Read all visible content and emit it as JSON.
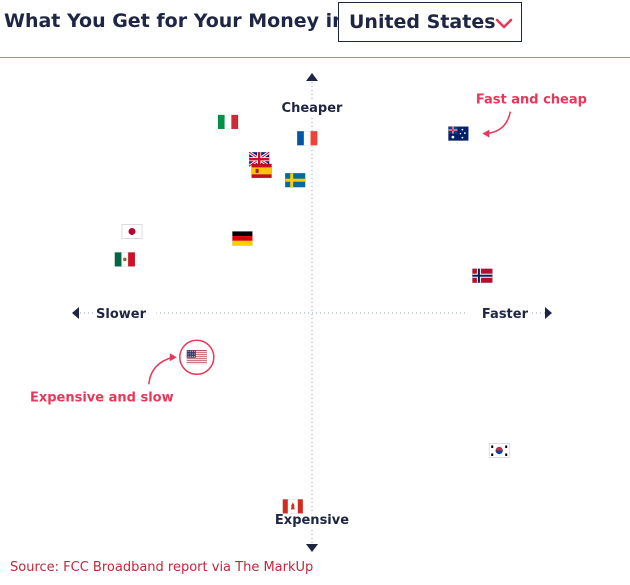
{
  "header": {
    "title": "What You Get for Your Money in",
    "selected_country": "United States"
  },
  "colors": {
    "accent": "#e8375a",
    "ink": "#1f2544",
    "source": "#c0283c"
  },
  "chart_data": {
    "type": "scatter",
    "x_axis": {
      "negative_label": "Slower",
      "positive_label": "Faster"
    },
    "y_axis": {
      "positive_label": "Cheaper",
      "negative_label": "Expensive"
    },
    "xlim": [
      -1,
      1
    ],
    "ylim": [
      -1,
      1
    ],
    "grid": false,
    "points": [
      {
        "country": "Italy",
        "flag": "it",
        "x": -0.35,
        "y": 0.82
      },
      {
        "country": "France",
        "flag": "fr",
        "x": -0.02,
        "y": 0.75
      },
      {
        "country": "Australia",
        "flag": "au",
        "x": 0.61,
        "y": 0.77
      },
      {
        "country": "United Kingdom",
        "flag": "gb",
        "x": -0.22,
        "y": 0.66
      },
      {
        "country": "Spain",
        "flag": "es",
        "x": -0.21,
        "y": 0.61
      },
      {
        "country": "Sweden",
        "flag": "se",
        "x": -0.07,
        "y": 0.57
      },
      {
        "country": "Japan",
        "flag": "jp",
        "x": -0.75,
        "y": 0.35
      },
      {
        "country": "Germany",
        "flag": "de",
        "x": -0.29,
        "y": 0.32
      },
      {
        "country": "Mexico",
        "flag": "mx",
        "x": -0.78,
        "y": 0.23
      },
      {
        "country": "Norway",
        "flag": "no",
        "x": 0.71,
        "y": 0.16
      },
      {
        "country": "United States",
        "flag": "us",
        "x": -0.48,
        "y": -0.19,
        "highlight": true
      },
      {
        "country": "South Korea",
        "flag": "kr",
        "x": 0.78,
        "y": -0.59
      },
      {
        "country": "Canada",
        "flag": "ca",
        "x": -0.08,
        "y": -0.83
      }
    ],
    "annotations": [
      {
        "text": "Fast and cheap",
        "target": "Australia"
      },
      {
        "text": "Expensive and slow",
        "target": "United States"
      }
    ]
  },
  "source": "Source: FCC Broadband report via The MarkUp"
}
